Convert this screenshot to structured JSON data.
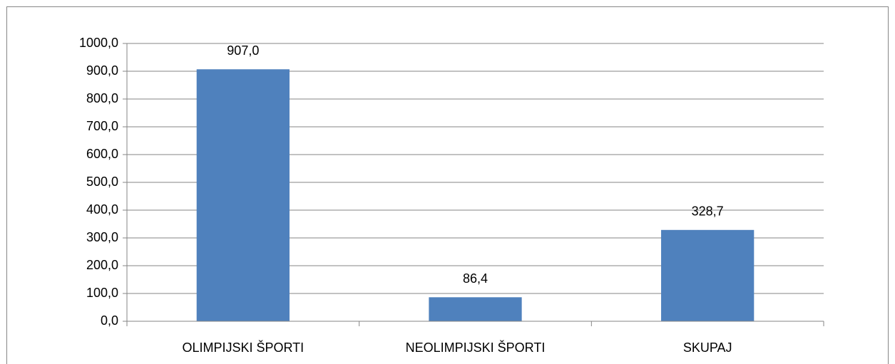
{
  "chart_data": {
    "type": "bar",
    "categories": [
      "OLIMPIJSKI ŠPORTI",
      "NEOLIMPIJSKI ŠPORTI",
      "SKUPAJ"
    ],
    "values": [
      907.0,
      86.4,
      328.7
    ],
    "value_labels": [
      "907,0",
      "86,4",
      "328,7"
    ],
    "color": "#4f81bd",
    "ylim": [
      0,
      1000
    ],
    "yticks": [
      {
        "value": 0,
        "label": "0,0"
      },
      {
        "value": 100,
        "label": "100,0"
      },
      {
        "value": 200,
        "label": "200,0"
      },
      {
        "value": 300,
        "label": "300,0"
      },
      {
        "value": 400,
        "label": "400,0"
      },
      {
        "value": 500,
        "label": "500,0"
      },
      {
        "value": 600,
        "label": "600,0"
      },
      {
        "value": 700,
        "label": "700,0"
      },
      {
        "value": 800,
        "label": "800,0"
      },
      {
        "value": 900,
        "label": "900,0"
      },
      {
        "value": 1000,
        "label": "1000,0"
      }
    ],
    "grid": true
  }
}
